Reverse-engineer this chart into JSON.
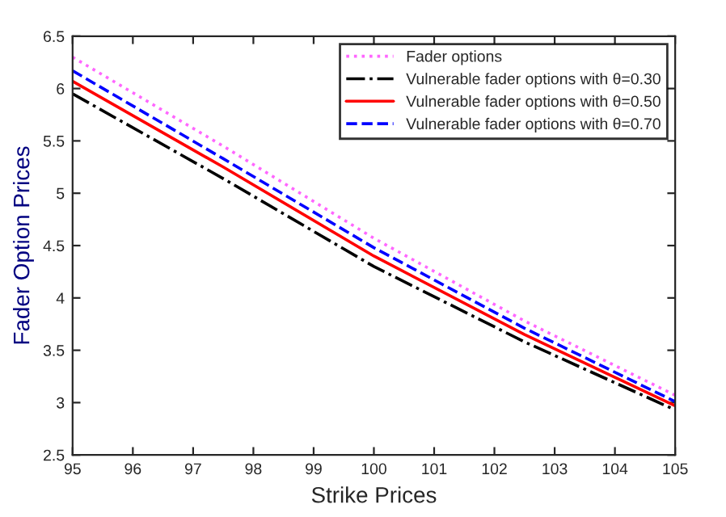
{
  "chart_data": {
    "type": "line",
    "xlabel": "Strike Prices",
    "ylabel": "Fader Option Prices",
    "x": [
      95,
      97.5,
      100,
      102.5,
      105
    ],
    "series": [
      {
        "name": "Fader options",
        "color": "#ff66ff",
        "line_style": "dotted",
        "values": [
          6.3,
          5.45,
          4.57,
          3.78,
          3.07
        ]
      },
      {
        "name": "Vulnerable fader options with θ=0.30",
        "color": "#000000",
        "line_style": "dashdot",
        "values": [
          5.95,
          5.14,
          4.3,
          3.58,
          2.93
        ]
      },
      {
        "name": "Vulnerable fader options with θ=0.50",
        "color": "#ff0000",
        "line_style": "solid",
        "values": [
          6.07,
          5.25,
          4.4,
          3.65,
          2.97
        ]
      },
      {
        "name": "Vulnerable fader options with θ=0.70",
        "color": "#0000ff",
        "line_style": "dashed",
        "values": [
          6.17,
          5.33,
          4.48,
          3.71,
          3.01
        ]
      }
    ],
    "xlim": [
      95,
      105
    ],
    "ylim": [
      2.5,
      6.5
    ],
    "xticks": [
      95,
      96,
      97,
      98,
      99,
      100,
      101,
      102,
      103,
      104,
      105
    ],
    "yticks": [
      2.5,
      3,
      3.5,
      4,
      4.5,
      5,
      5.5,
      6,
      6.5
    ],
    "legend": "top right",
    "grid": false
  }
}
